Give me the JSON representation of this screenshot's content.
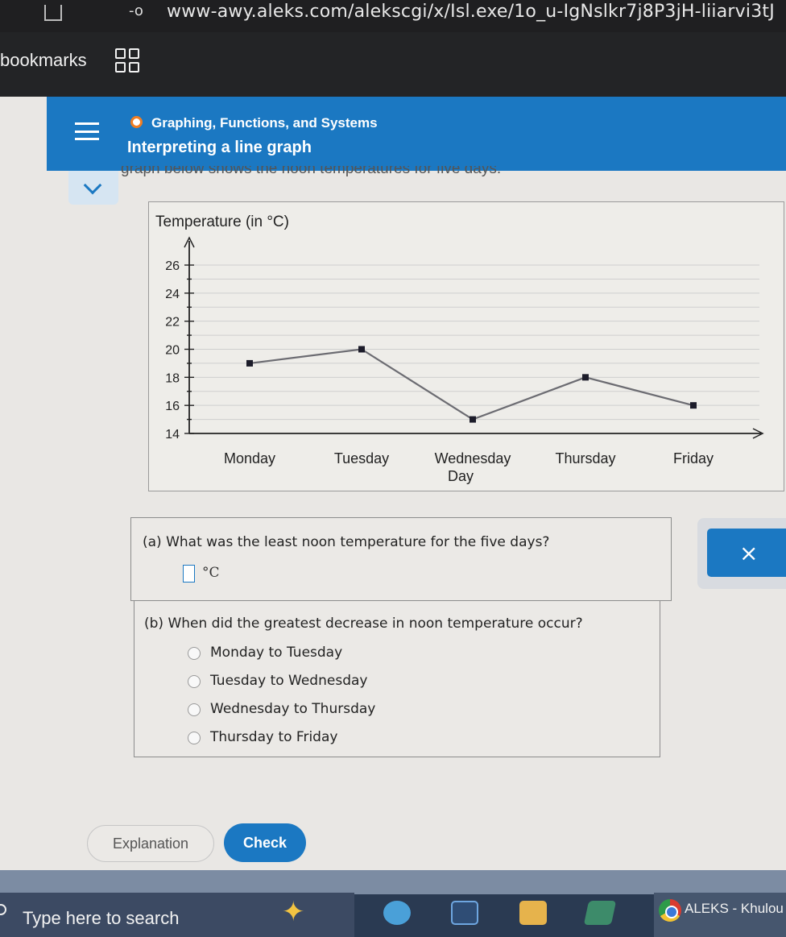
{
  "browser": {
    "url": "www-awy.aleks.com/alekscgi/x/Isl.exe/1o_u-IgNslkr7j8P3jH-liiarvi3tJ",
    "bookmarks_label": "bookmarks"
  },
  "header": {
    "topic": "Graphing, Functions, and Systems",
    "subtopic": "Interpreting a line graph",
    "intro": "graph below shows the noon temperatures for five days."
  },
  "chart_data": {
    "type": "line",
    "title": "Temperature (in °C)",
    "xlabel": "Day",
    "ylabel": "Temperature (in °C)",
    "categories": [
      "Monday",
      "Tuesday",
      "Wednesday",
      "Thursday",
      "Friday"
    ],
    "values": [
      19,
      20,
      15,
      18,
      16
    ],
    "y_ticks": [
      14,
      16,
      18,
      20,
      22,
      24,
      26
    ],
    "ylim": [
      14,
      26
    ],
    "grid": true
  },
  "question_a": {
    "text": "(a)  What was the least noon temperature for the five days?",
    "answer_value": "",
    "unit": "°C"
  },
  "question_b": {
    "text": "(b)  When did the greatest decrease in noon temperature occur?",
    "options": [
      "Monday to Tuesday",
      "Tuesday to Wednesday",
      "Wednesday to Thursday",
      "Thursday to Friday"
    ]
  },
  "buttons": {
    "close": "×",
    "explanation": "Explanation",
    "check": "Check"
  },
  "taskbar": {
    "search_placeholder": "Type here to search",
    "active_window": "ALEKS - Khulou"
  },
  "colors": {
    "aleks_blue": "#1b78c2",
    "topic_dot": "#f07d22"
  }
}
